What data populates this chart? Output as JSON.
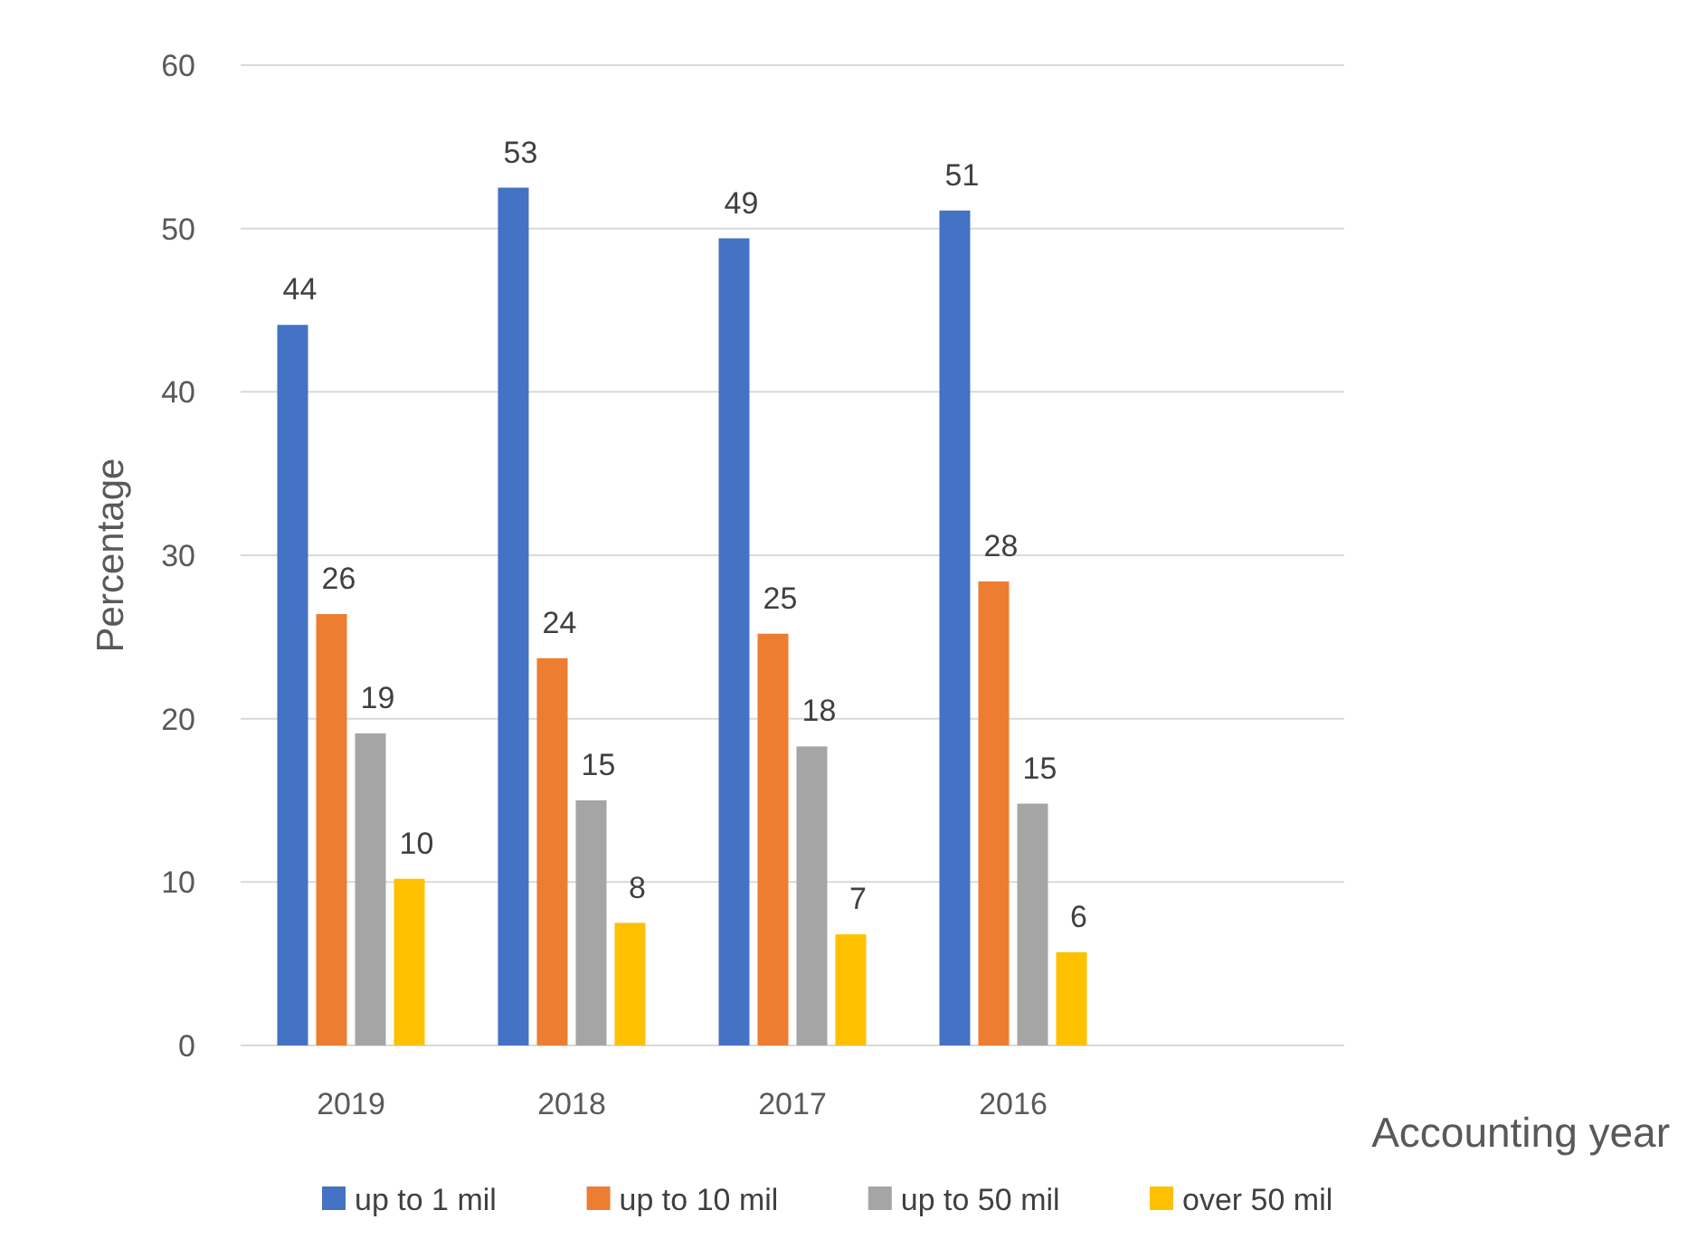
{
  "chart_data": {
    "type": "bar",
    "xlabel": "Accounting year",
    "ylabel": "Percentage",
    "categories": [
      "2019",
      "2018",
      "2017",
      "2016",
      null
    ],
    "ylim": [
      0,
      60
    ],
    "yticks": [
      0,
      10,
      20,
      30,
      40,
      50,
      60
    ],
    "grid": "y",
    "legend": "bottom",
    "series": [
      {
        "name": "up to 1 mil",
        "color": "#4472c4",
        "values": [
          44.1,
          52.5,
          49.4,
          51.1,
          null
        ],
        "value_labels": [
          "44",
          "53",
          "49",
          "51",
          null
        ]
      },
      {
        "name": "up to 10 mil",
        "color": "#ed7d31",
        "values": [
          26.4,
          23.7,
          25.2,
          28.4,
          null
        ],
        "value_labels": [
          "26",
          "24",
          "25",
          "28",
          null
        ]
      },
      {
        "name": "up to 50 mil",
        "color": "#a5a5a5",
        "values": [
          19.1,
          15.0,
          18.3,
          14.8,
          null
        ],
        "value_labels": [
          "19",
          "15",
          "18",
          "15",
          null
        ]
      },
      {
        "name": "over 50 mil",
        "color": "#ffc000",
        "values": [
          10.2,
          7.5,
          6.8,
          5.7,
          null
        ],
        "value_labels": [
          "10",
          "8",
          "7",
          "6",
          null
        ]
      }
    ]
  }
}
